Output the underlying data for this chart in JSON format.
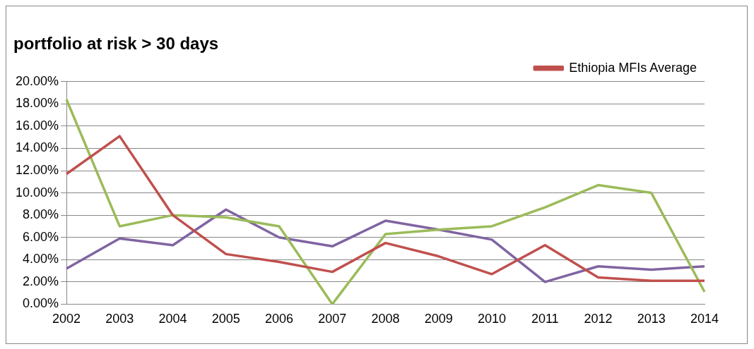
{
  "chart_data": {
    "type": "line",
    "title": "portfolio at risk > 30 days",
    "categories": [
      "2002",
      "2003",
      "2004",
      "2005",
      "2006",
      "2007",
      "2008",
      "2009",
      "2010",
      "2011",
      "2012",
      "2013",
      "2014"
    ],
    "series": [
      {
        "name": "Ethiopia MFIs Average",
        "color": "#c0504d",
        "values": [
          11.7,
          15.1,
          8.0,
          4.5,
          3.8,
          2.9,
          5.5,
          4.3,
          2.7,
          5.3,
          2.4,
          2.1,
          2.1
        ]
      },
      {
        "color": "#9bbb59",
        "values": [
          18.4,
          7.0,
          8.0,
          7.8,
          7.0,
          0,
          6.3,
          6.7,
          7.0,
          8.7,
          10.7,
          10.0,
          1.1
        ]
      },
      {
        "color": "#8064a2",
        "values": [
          3.2,
          5.9,
          5.3,
          8.5,
          6.0,
          5.2,
          7.5,
          6.7,
          5.8,
          2.0,
          3.4,
          3.1,
          3.4
        ]
      }
    ],
    "ylim": [
      0,
      20
    ],
    "yticks": [
      {
        "value": 0,
        "label": "0.00%"
      },
      {
        "value": 2,
        "label": "2.00%"
      },
      {
        "value": 4,
        "label": "4.00%"
      },
      {
        "value": 6,
        "label": "6.00%"
      },
      {
        "value": 8,
        "label": "8.00%"
      },
      {
        "value": 10,
        "label": "10.00%"
      },
      {
        "value": 12,
        "label": "12.00%"
      },
      {
        "value": 14,
        "label": "14.00%"
      },
      {
        "value": 16,
        "label": "16.00%"
      },
      {
        "value": 18,
        "label": "18.00%"
      },
      {
        "value": 20,
        "label": "20.00%"
      }
    ],
    "grid": "y",
    "legend": "top right",
    "marker": "none",
    "line_style": "solid"
  }
}
